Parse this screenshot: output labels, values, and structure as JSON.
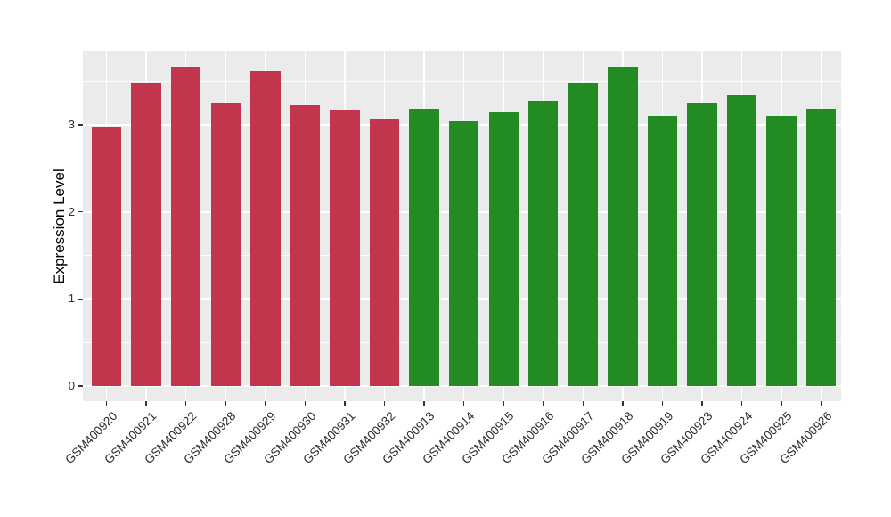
{
  "chart_data": {
    "type": "bar",
    "title": "",
    "xlabel": "",
    "ylabel": "Expression Level",
    "categories": [
      "GSM400920",
      "GSM400921",
      "GSM400922",
      "GSM400928",
      "GSM400929",
      "GSM400930",
      "GSM400931",
      "GSM400932",
      "GSM400913",
      "GSM400914",
      "GSM400915",
      "GSM400916",
      "GSM400917",
      "GSM400918",
      "GSM400919",
      "GSM400923",
      "GSM400924",
      "GSM400925",
      "GSM400926"
    ],
    "values": [
      2.97,
      3.48,
      3.67,
      3.26,
      3.61,
      3.23,
      3.17,
      3.07,
      3.18,
      3.04,
      3.14,
      3.28,
      3.48,
      3.67,
      3.1,
      3.26,
      3.34,
      3.1,
      3.18
    ],
    "bar_colors": [
      "#C2354D",
      "#C2354D",
      "#C2354D",
      "#C2354D",
      "#C2354D",
      "#C2354D",
      "#C2354D",
      "#C2354D",
      "#228C22",
      "#228C22",
      "#228C22",
      "#228C22",
      "#228C22",
      "#228C22",
      "#228C22",
      "#228C22",
      "#228C22",
      "#228C22",
      "#228C22"
    ],
    "group_colors": {
      "left_group": "#C2354D",
      "right_group": "#228C22"
    },
    "yticks": [
      0,
      1,
      2,
      3
    ],
    "ytick_labels": [
      "0",
      "1",
      "2",
      "3"
    ],
    "yticks_minor": [
      0.5,
      1.5,
      2.5,
      3.5
    ],
    "ylim": [
      0,
      3.85
    ],
    "grid": true,
    "legend": false,
    "panel_background": "#EBEBEB",
    "grid_color": "#FFFFFF"
  }
}
